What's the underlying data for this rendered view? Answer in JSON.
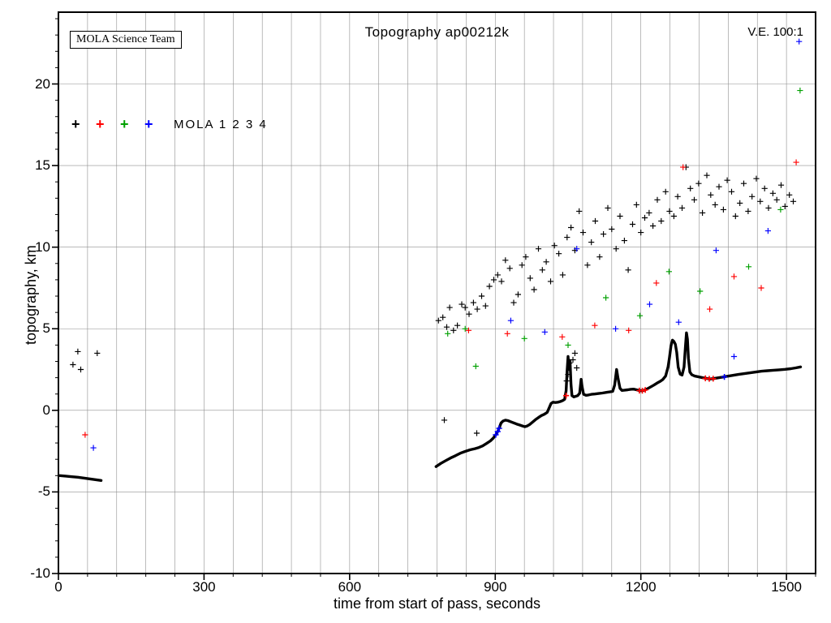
{
  "header": {
    "team_box_label": "MOLA Science Team",
    "title": "Topography ap00212k",
    "ve_label": "V.E. 100:1",
    "legend_label": "MOLA 1 2 3 4"
  },
  "chart_data": {
    "type": "scatter",
    "title": "Topography ap00212k",
    "xlabel": "time from start of pass, seconds",
    "ylabel": "topography, km",
    "xlim": [
      0,
      1560
    ],
    "ylim": [
      -10,
      24.4
    ],
    "xticks": [
      0,
      300,
      600,
      900,
      1200,
      1500
    ],
    "yticks": [
      -10,
      -5,
      0,
      5,
      10,
      15,
      20
    ],
    "x_grid_step": 60,
    "y_grid_step": 5,
    "grid": true,
    "grid_color": "#8f8f8f",
    "frame_color": "#000000",
    "marker": "plus",
    "legend_position": "top-left-inside",
    "series": [
      {
        "name": "MOLA 1",
        "color": "#000000",
        "points": [
          [
            30,
            2.8
          ],
          [
            40,
            3.6
          ],
          [
            46,
            2.5
          ],
          [
            80,
            3.5
          ],
          [
            795,
            -0.6
          ],
          [
            862,
            -1.4
          ],
          [
            783,
            5.5
          ],
          [
            792,
            5.7
          ],
          [
            800,
            5.1
          ],
          [
            806,
            6.3
          ],
          [
            814,
            4.9
          ],
          [
            822,
            5.2
          ],
          [
            831,
            6.5
          ],
          [
            838,
            6.3
          ],
          [
            846,
            5.9
          ],
          [
            855,
            6.6
          ],
          [
            863,
            6.2
          ],
          [
            872,
            7.0
          ],
          [
            880,
            6.4
          ],
          [
            888,
            7.6
          ],
          [
            897,
            8.0
          ],
          [
            905,
            8.3
          ],
          [
            913,
            7.9
          ],
          [
            921,
            9.2
          ],
          [
            930,
            8.7
          ],
          [
            938,
            6.6
          ],
          [
            947,
            7.1
          ],
          [
            955,
            8.9
          ],
          [
            963,
            9.4
          ],
          [
            972,
            8.1
          ],
          [
            980,
            7.4
          ],
          [
            989,
            9.9
          ],
          [
            997,
            8.6
          ],
          [
            1005,
            9.1
          ],
          [
            1014,
            7.9
          ],
          [
            1022,
            10.1
          ],
          [
            1031,
            9.6
          ],
          [
            1039,
            8.3
          ],
          [
            1047,
            1.8
          ],
          [
            1050,
            2.2
          ],
          [
            1053,
            2.9
          ],
          [
            1060,
            3.1
          ],
          [
            1064,
            3.5
          ],
          [
            1068,
            2.6
          ],
          [
            1048,
            10.6
          ],
          [
            1056,
            11.2
          ],
          [
            1064,
            9.8
          ],
          [
            1073,
            12.2
          ],
          [
            1081,
            10.9
          ],
          [
            1090,
            8.9
          ],
          [
            1098,
            10.3
          ],
          [
            1106,
            11.6
          ],
          [
            1115,
            9.4
          ],
          [
            1123,
            10.8
          ],
          [
            1132,
            12.4
          ],
          [
            1140,
            11.1
          ],
          [
            1149,
            9.9
          ],
          [
            1157,
            11.9
          ],
          [
            1166,
            10.4
          ],
          [
            1174,
            8.6
          ],
          [
            1183,
            11.4
          ],
          [
            1191,
            12.6
          ],
          [
            1200,
            10.9
          ],
          [
            1208,
            11.8
          ],
          [
            1217,
            12.1
          ],
          [
            1225,
            11.3
          ],
          [
            1234,
            12.9
          ],
          [
            1242,
            11.6
          ],
          [
            1251,
            13.4
          ],
          [
            1259,
            12.2
          ],
          [
            1268,
            11.9
          ],
          [
            1276,
            13.1
          ],
          [
            1285,
            12.4
          ],
          [
            1293,
            14.9
          ],
          [
            1302,
            13.6
          ],
          [
            1310,
            12.9
          ],
          [
            1319,
            13.9
          ],
          [
            1327,
            12.1
          ],
          [
            1336,
            14.4
          ],
          [
            1344,
            13.2
          ],
          [
            1353,
            12.6
          ],
          [
            1361,
            13.7
          ],
          [
            1370,
            12.3
          ],
          [
            1378,
            14.1
          ],
          [
            1387,
            13.4
          ],
          [
            1395,
            11.9
          ],
          [
            1404,
            12.7
          ],
          [
            1412,
            13.9
          ],
          [
            1421,
            12.2
          ],
          [
            1429,
            13.1
          ],
          [
            1438,
            14.2
          ],
          [
            1446,
            12.8
          ],
          [
            1455,
            13.6
          ],
          [
            1463,
            12.4
          ],
          [
            1472,
            13.3
          ],
          [
            1480,
            12.9
          ],
          [
            1489,
            13.8
          ],
          [
            1497,
            12.5
          ],
          [
            1506,
            13.2
          ],
          [
            1514,
            12.8
          ]
        ]
      },
      {
        "name": "MOLA 2",
        "color": "#ff0000",
        "points": [
          [
            55,
            -1.5
          ],
          [
            845,
            4.9
          ],
          [
            925,
            4.7
          ],
          [
            1038,
            4.5
          ],
          [
            1105,
            5.2
          ],
          [
            1175,
            4.9
          ],
          [
            1232,
            7.8
          ],
          [
            1287,
            14.9
          ],
          [
            1342,
            6.2
          ],
          [
            1392,
            8.2
          ],
          [
            1448,
            7.5
          ],
          [
            1520,
            15.2
          ]
        ]
      },
      {
        "name": "MOLA 3",
        "color": "#00a000",
        "points": [
          [
            802,
            4.7
          ],
          [
            838,
            5.0
          ],
          [
            860,
            2.7
          ],
          [
            960,
            4.4
          ],
          [
            1050,
            4.0
          ],
          [
            1128,
            6.9
          ],
          [
            1198,
            5.8
          ],
          [
            1258,
            8.5
          ],
          [
            1322,
            7.3
          ],
          [
            1422,
            8.8
          ],
          [
            1488,
            12.3
          ],
          [
            1528,
            19.6
          ]
        ]
      },
      {
        "name": "MOLA 4",
        "color": "#0000ff",
        "points": [
          [
            72,
            -2.3
          ],
          [
            932,
            5.5
          ],
          [
            1002,
            4.8
          ],
          [
            1068,
            9.9
          ],
          [
            1148,
            5.0
          ],
          [
            1218,
            6.5
          ],
          [
            1278,
            5.4
          ],
          [
            1355,
            9.8
          ],
          [
            1392,
            3.3
          ],
          [
            1462,
            11.0
          ],
          [
            1526,
            22.6
          ]
        ]
      }
    ],
    "ground_track": {
      "name": "surface topography profile",
      "color": "#000000",
      "segments": [
        [
          [
            3,
            -4.0
          ],
          [
            15,
            -4.03
          ],
          [
            28,
            -4.07
          ],
          [
            40,
            -4.1
          ],
          [
            52,
            -4.15
          ],
          [
            64,
            -4.2
          ],
          [
            76,
            -4.25
          ],
          [
            88,
            -4.3
          ]
        ],
        [
          [
            778,
            -3.45
          ],
          [
            788,
            -3.25
          ],
          [
            798,
            -3.08
          ],
          [
            808,
            -2.92
          ],
          [
            818,
            -2.78
          ],
          [
            828,
            -2.63
          ],
          [
            838,
            -2.52
          ],
          [
            848,
            -2.42
          ],
          [
            858,
            -2.35
          ],
          [
            866,
            -2.28
          ],
          [
            874,
            -2.18
          ],
          [
            882,
            -2.03
          ],
          [
            890,
            -1.87
          ],
          [
            896,
            -1.7
          ],
          [
            901,
            -1.5
          ],
          [
            905,
            -1.3
          ],
          [
            908,
            -1.08
          ],
          [
            912,
            -0.78
          ],
          [
            916,
            -0.66
          ],
          [
            921,
            -0.6
          ],
          [
            926,
            -0.63
          ],
          [
            932,
            -0.7
          ],
          [
            938,
            -0.77
          ],
          [
            944,
            -0.84
          ],
          [
            950,
            -0.9
          ],
          [
            956,
            -0.96
          ],
          [
            961,
            -1.0
          ],
          [
            966,
            -0.96
          ],
          [
            971,
            -0.87
          ],
          [
            977,
            -0.72
          ],
          [
            983,
            -0.57
          ],
          [
            989,
            -0.44
          ],
          [
            995,
            -0.32
          ],
          [
            1001,
            -0.24
          ],
          [
            1007,
            -0.12
          ],
          [
            1011,
            0.15
          ],
          [
            1015,
            0.42
          ],
          [
            1019,
            0.5
          ],
          [
            1024,
            0.48
          ],
          [
            1029,
            0.5
          ],
          [
            1034,
            0.54
          ],
          [
            1039,
            0.6
          ],
          [
            1043,
            0.68
          ],
          [
            1046,
            1.2
          ],
          [
            1048,
            2.4
          ],
          [
            1050,
            3.3
          ],
          [
            1052,
            2.5
          ],
          [
            1054,
            3.05
          ],
          [
            1056,
            1.6
          ],
          [
            1058,
            0.9
          ],
          [
            1062,
            0.82
          ],
          [
            1066,
            0.86
          ],
          [
            1070,
            0.9
          ],
          [
            1074,
            1.05
          ],
          [
            1077,
            1.9
          ],
          [
            1079,
            1.45
          ],
          [
            1082,
            0.98
          ],
          [
            1087,
            0.92
          ],
          [
            1092,
            0.94
          ],
          [
            1098,
            0.98
          ],
          [
            1105,
            1.0
          ],
          [
            1113,
            1.03
          ],
          [
            1121,
            1.06
          ],
          [
            1129,
            1.1
          ],
          [
            1136,
            1.13
          ],
          [
            1142,
            1.16
          ],
          [
            1146,
            1.55
          ],
          [
            1150,
            2.5
          ],
          [
            1153,
            1.95
          ],
          [
            1157,
            1.35
          ],
          [
            1161,
            1.22
          ],
          [
            1167,
            1.24
          ],
          [
            1173,
            1.26
          ],
          [
            1179,
            1.29
          ],
          [
            1185,
            1.3
          ],
          [
            1191,
            1.26
          ],
          [
            1197,
            1.21
          ],
          [
            1203,
            1.2
          ],
          [
            1209,
            1.25
          ],
          [
            1215,
            1.35
          ],
          [
            1221,
            1.45
          ],
          [
            1227,
            1.55
          ],
          [
            1233,
            1.66
          ],
          [
            1239,
            1.76
          ],
          [
            1245,
            1.88
          ],
          [
            1251,
            2.1
          ],
          [
            1256,
            2.65
          ],
          [
            1259,
            3.25
          ],
          [
            1262,
            3.95
          ],
          [
            1265,
            4.3
          ],
          [
            1268,
            4.22
          ],
          [
            1271,
            4.05
          ],
          [
            1274,
            3.55
          ],
          [
            1277,
            2.65
          ],
          [
            1281,
            2.22
          ],
          [
            1285,
            2.16
          ],
          [
            1289,
            2.65
          ],
          [
            1292,
            3.95
          ],
          [
            1294,
            4.75
          ],
          [
            1296,
            4.35
          ],
          [
            1298,
            3.2
          ],
          [
            1301,
            2.35
          ],
          [
            1305,
            2.18
          ],
          [
            1311,
            2.1
          ],
          [
            1319,
            2.05
          ],
          [
            1327,
            2.0
          ],
          [
            1335,
            1.96
          ],
          [
            1343,
            1.92
          ],
          [
            1351,
            1.95
          ],
          [
            1361,
            2.0
          ],
          [
            1371,
            2.05
          ],
          [
            1381,
            2.1
          ],
          [
            1391,
            2.15
          ],
          [
            1401,
            2.2
          ],
          [
            1413,
            2.25
          ],
          [
            1425,
            2.3
          ],
          [
            1437,
            2.35
          ],
          [
            1449,
            2.4
          ],
          [
            1461,
            2.43
          ],
          [
            1473,
            2.46
          ],
          [
            1485,
            2.48
          ],
          [
            1497,
            2.51
          ],
          [
            1509,
            2.55
          ],
          [
            1519,
            2.6
          ],
          [
            1529,
            2.66
          ]
        ]
      ]
    },
    "track_overlays": [
      {
        "color": "#ff0000",
        "points": [
          [
            1046,
            0.9
          ],
          [
            1197,
            1.21
          ],
          [
            1203,
            1.2
          ],
          [
            1209,
            1.25
          ],
          [
            1333,
            1.96
          ],
          [
            1341,
            1.93
          ],
          [
            1349,
            1.94
          ]
        ]
      },
      {
        "color": "#0000ff",
        "points": [
          [
            901,
            -1.5
          ],
          [
            905,
            -1.3
          ],
          [
            908,
            -1.1
          ],
          [
            1372,
            2.05
          ]
        ]
      }
    ]
  }
}
